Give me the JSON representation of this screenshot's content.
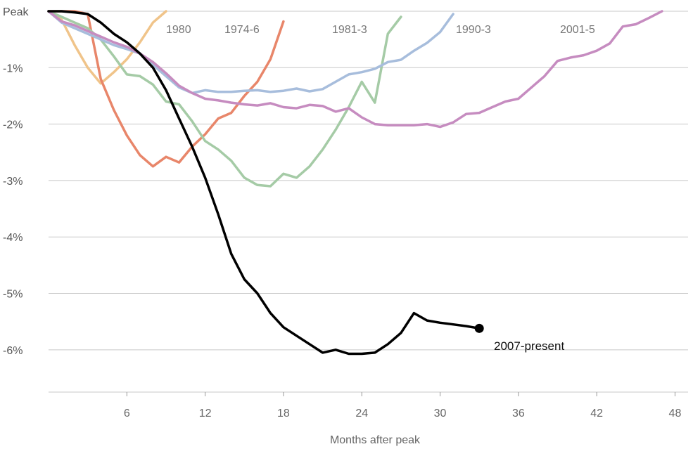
{
  "chart_data": {
    "type": "line",
    "xlabel": "Months after peak",
    "ylabel": "",
    "xlim": [
      0,
      49
    ],
    "ylim": [
      -6.5,
      0
    ],
    "x_ticks": [
      6,
      12,
      18,
      24,
      30,
      36,
      42,
      48
    ],
    "y_ticks": [
      {
        "value": 0,
        "label": "Peak"
      },
      {
        "value": -1,
        "label": "-1%"
      },
      {
        "value": -2,
        "label": "-2%"
      },
      {
        "value": -3,
        "label": "-3%"
      },
      {
        "value": -4,
        "label": "-4%"
      },
      {
        "value": -5,
        "label": "-5%"
      },
      {
        "value": -6,
        "label": "-6%"
      }
    ],
    "grid": true,
    "series": [
      {
        "name": "1980",
        "color": "#f0c48a",
        "x": [
          0,
          1,
          2,
          3,
          4,
          5,
          6,
          7,
          8,
          9
        ],
        "y": [
          0,
          -0.15,
          -0.6,
          -1.0,
          -1.28,
          -1.08,
          -0.85,
          -0.55,
          -0.2,
          0
        ]
      },
      {
        "name": "1974-6",
        "color": "#e8866a",
        "x": [
          0,
          1,
          2,
          3,
          4,
          5,
          6,
          7,
          8,
          9,
          10,
          11,
          12,
          13,
          14,
          15,
          16,
          17,
          18
        ],
        "y": [
          0,
          0,
          0,
          -0.05,
          -1.2,
          -1.75,
          -2.2,
          -2.55,
          -2.75,
          -2.58,
          -2.68,
          -2.4,
          -2.18,
          -1.9,
          -1.8,
          -1.5,
          -1.25,
          -0.85,
          -0.18
        ]
      },
      {
        "name": "1981-3",
        "color": "#a5cba6",
        "x": [
          0,
          1,
          2,
          3,
          4,
          5,
          6,
          7,
          8,
          9,
          10,
          11,
          12,
          13,
          14,
          15,
          16,
          17,
          18,
          19,
          20,
          21,
          22,
          23,
          24,
          25,
          26,
          27
        ],
        "y": [
          0,
          -0.1,
          -0.2,
          -0.3,
          -0.5,
          -0.8,
          -1.12,
          -1.15,
          -1.3,
          -1.6,
          -1.65,
          -1.95,
          -2.3,
          -2.45,
          -2.65,
          -2.95,
          -3.08,
          -3.1,
          -2.88,
          -2.95,
          -2.75,
          -2.45,
          -2.1,
          -1.7,
          -1.25,
          -1.62,
          -0.4,
          -0.1
        ]
      },
      {
        "name": "1990-3",
        "color": "#a7bddc",
        "x": [
          0,
          1,
          2,
          3,
          4,
          5,
          6,
          7,
          8,
          9,
          10,
          11,
          12,
          13,
          14,
          15,
          16,
          17,
          18,
          19,
          20,
          21,
          22,
          23,
          24,
          25,
          26,
          27,
          28,
          29,
          30,
          31
        ],
        "y": [
          0,
          -0.2,
          -0.3,
          -0.4,
          -0.5,
          -0.6,
          -0.67,
          -0.75,
          -0.95,
          -1.15,
          -1.35,
          -1.45,
          -1.4,
          -1.43,
          -1.43,
          -1.41,
          -1.4,
          -1.43,
          -1.41,
          -1.37,
          -1.42,
          -1.38,
          -1.25,
          -1.12,
          -1.08,
          -1.02,
          -0.9,
          -0.86,
          -0.7,
          -0.56,
          -0.37,
          -0.05
        ]
      },
      {
        "name": "2001-5",
        "color": "#c68cc0",
        "x": [
          0,
          1,
          2,
          3,
          4,
          5,
          6,
          7,
          8,
          9,
          10,
          11,
          12,
          13,
          14,
          15,
          16,
          17,
          18,
          19,
          20,
          21,
          22,
          23,
          24,
          25,
          26,
          27,
          28,
          29,
          30,
          31,
          32,
          33,
          34,
          35,
          36,
          37,
          38,
          39,
          40,
          41,
          42,
          43,
          44,
          45,
          46,
          47
        ],
        "y": [
          0,
          -0.18,
          -0.25,
          -0.35,
          -0.45,
          -0.55,
          -0.63,
          -0.75,
          -0.9,
          -1.1,
          -1.32,
          -1.45,
          -1.55,
          -1.58,
          -1.62,
          -1.65,
          -1.67,
          -1.63,
          -1.7,
          -1.72,
          -1.66,
          -1.68,
          -1.78,
          -1.72,
          -1.88,
          -2.0,
          -2.02,
          -2.02,
          -2.02,
          -2.0,
          -2.05,
          -1.97,
          -1.82,
          -1.8,
          -1.7,
          -1.6,
          -1.55,
          -1.35,
          -1.15,
          -0.88,
          -0.82,
          -0.78,
          -0.7,
          -0.57,
          -0.27,
          -0.23,
          -0.12,
          0
        ]
      },
      {
        "name": "2007-present",
        "color": "#000000",
        "x": [
          0,
          1,
          2,
          3,
          4,
          5,
          6,
          7,
          8,
          9,
          10,
          11,
          12,
          13,
          14,
          15,
          16,
          17,
          18,
          19,
          20,
          21,
          22,
          23,
          24,
          25,
          26,
          27,
          28,
          29,
          30,
          31,
          32,
          33
        ],
        "y": [
          0,
          0,
          -0.02,
          -0.05,
          -0.2,
          -0.4,
          -0.55,
          -0.75,
          -1.0,
          -1.4,
          -1.9,
          -2.4,
          -2.95,
          -3.6,
          -4.3,
          -4.75,
          -5.0,
          -5.35,
          -5.6,
          -5.75,
          -5.9,
          -6.05,
          -6.0,
          -6.07,
          -6.07,
          -6.05,
          -5.9,
          -5.7,
          -5.35,
          -5.48,
          -5.52,
          -5.55,
          -5.58,
          -5.62
        ],
        "end_marker": true
      }
    ]
  }
}
